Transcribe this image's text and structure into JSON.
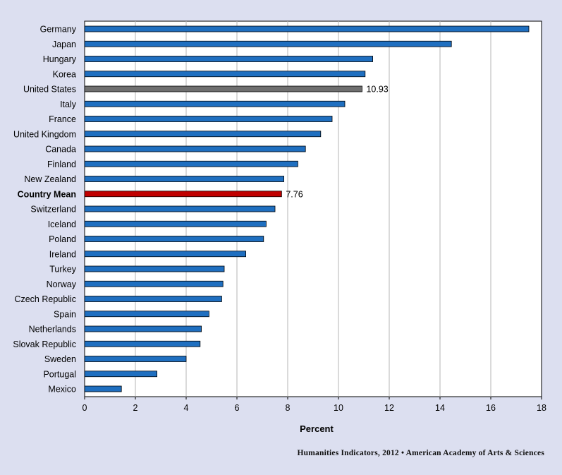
{
  "chart_data": {
    "type": "bar",
    "orientation": "horizontal",
    "categories": [
      "Germany",
      "Japan",
      "Hungary",
      "Korea",
      "United States",
      "Italy",
      "France",
      "United Kingdom",
      "Canada",
      "Finland",
      "New Zealand",
      "Country Mean",
      "Switzerland",
      "Iceland",
      "Poland",
      "Ireland",
      "Turkey",
      "Norway",
      "Czech Republic",
      "Spain",
      "Netherlands",
      "Slovak Republic",
      "Sweden",
      "Portugal",
      "Mexico"
    ],
    "values": [
      17.5,
      14.45,
      11.35,
      11.05,
      10.93,
      10.25,
      9.75,
      9.3,
      8.7,
      8.4,
      7.85,
      7.76,
      7.5,
      7.15,
      7.05,
      6.35,
      5.5,
      5.45,
      5.4,
      4.9,
      4.6,
      4.55,
      4.0,
      2.85,
      1.45
    ],
    "highlight": {
      "United States": {
        "color": "#6f6f6f",
        "label": "10.93"
      },
      "Country Mean": {
        "color": "#c00000",
        "label": "7.76",
        "bold": true
      }
    },
    "bar_color": "#1f6fc0",
    "xlabel": "Percent",
    "xlim": [
      0,
      18
    ],
    "xticks": [
      "0",
      "2",
      "4",
      "6",
      "8",
      "10",
      "12",
      "14",
      "16",
      "18"
    ],
    "grid": "vertical",
    "title": ""
  },
  "credit": "Humanities  Indicators, 2012 • American Academy of Arts & Sciences"
}
